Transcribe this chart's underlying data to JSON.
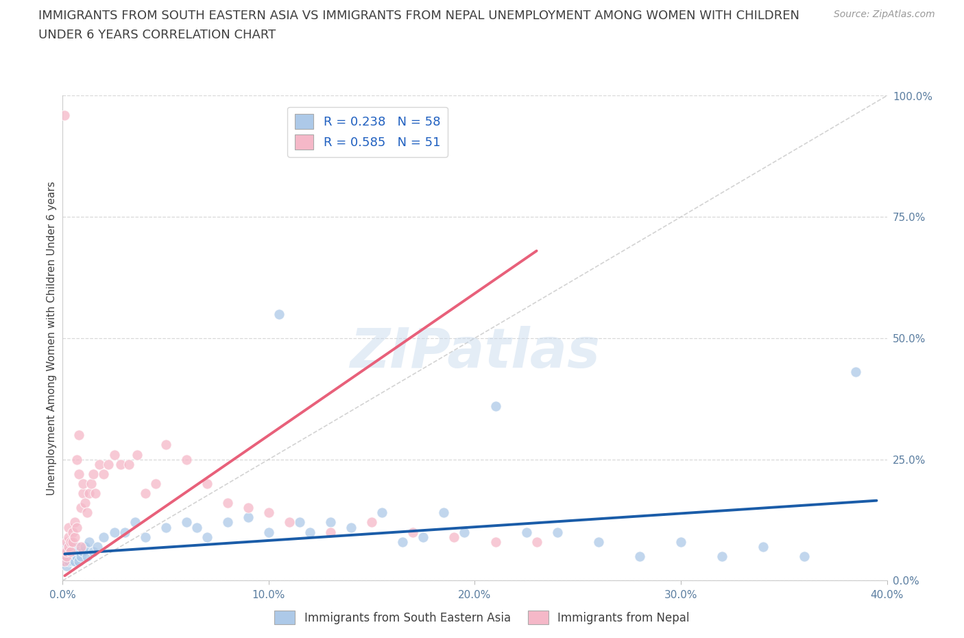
{
  "title_line1": "IMMIGRANTS FROM SOUTH EASTERN ASIA VS IMMIGRANTS FROM NEPAL UNEMPLOYMENT AMONG WOMEN WITH CHILDREN",
  "title_line2": "UNDER 6 YEARS CORRELATION CHART",
  "source_text": "Source: ZipAtlas.com",
  "ylabel": "Unemployment Among Women with Children Under 6 years",
  "watermark": "ZIPatlas",
  "R_sea": 0.238,
  "N_sea": 58,
  "R_nepal": 0.585,
  "N_nepal": 51,
  "color_sea": "#adc9e8",
  "color_sea_line": "#1a5ca8",
  "color_nepal": "#f5b8c8",
  "color_nepal_line": "#e8607a",
  "color_diag": "#c8c8c8",
  "xlim": [
    0.0,
    0.4
  ],
  "ylim": [
    0.0,
    1.0
  ],
  "xticks": [
    0.0,
    0.1,
    0.2,
    0.3,
    0.4
  ],
  "yticks": [
    0.0,
    0.25,
    0.5,
    0.75,
    1.0
  ],
  "xtick_labels": [
    "0.0%",
    "10.0%",
    "20.0%",
    "30.0%",
    "40.0%"
  ],
  "ytick_labels": [
    "0.0%",
    "25.0%",
    "50.0%",
    "75.0%",
    "100.0%"
  ],
  "sea_x": [
    0.001,
    0.001,
    0.002,
    0.002,
    0.002,
    0.003,
    0.003,
    0.003,
    0.004,
    0.004,
    0.005,
    0.005,
    0.005,
    0.006,
    0.006,
    0.007,
    0.007,
    0.008,
    0.008,
    0.009,
    0.01,
    0.011,
    0.012,
    0.013,
    0.015,
    0.017,
    0.02,
    0.025,
    0.03,
    0.035,
    0.04,
    0.05,
    0.06,
    0.065,
    0.07,
    0.08,
    0.09,
    0.1,
    0.105,
    0.115,
    0.12,
    0.13,
    0.14,
    0.155,
    0.165,
    0.175,
    0.185,
    0.195,
    0.21,
    0.225,
    0.24,
    0.26,
    0.28,
    0.3,
    0.32,
    0.34,
    0.36,
    0.385
  ],
  "sea_y": [
    0.04,
    0.06,
    0.05,
    0.07,
    0.03,
    0.05,
    0.04,
    0.06,
    0.05,
    0.07,
    0.04,
    0.06,
    0.05,
    0.04,
    0.06,
    0.05,
    0.07,
    0.06,
    0.04,
    0.05,
    0.06,
    0.07,
    0.05,
    0.08,
    0.06,
    0.07,
    0.09,
    0.1,
    0.1,
    0.12,
    0.09,
    0.11,
    0.12,
    0.11,
    0.09,
    0.12,
    0.13,
    0.1,
    0.55,
    0.12,
    0.1,
    0.12,
    0.11,
    0.14,
    0.08,
    0.09,
    0.14,
    0.1,
    0.36,
    0.1,
    0.1,
    0.08,
    0.05,
    0.08,
    0.05,
    0.07,
    0.05,
    0.43
  ],
  "nepal_x": [
    0.001,
    0.001,
    0.002,
    0.002,
    0.002,
    0.003,
    0.003,
    0.003,
    0.004,
    0.004,
    0.005,
    0.005,
    0.006,
    0.006,
    0.007,
    0.007,
    0.008,
    0.008,
    0.009,
    0.009,
    0.01,
    0.01,
    0.011,
    0.012,
    0.013,
    0.014,
    0.015,
    0.016,
    0.018,
    0.02,
    0.022,
    0.025,
    0.028,
    0.032,
    0.036,
    0.04,
    0.045,
    0.05,
    0.06,
    0.07,
    0.08,
    0.09,
    0.1,
    0.11,
    0.13,
    0.15,
    0.17,
    0.19,
    0.21,
    0.23,
    0.001
  ],
  "nepal_y": [
    0.04,
    0.06,
    0.05,
    0.08,
    0.06,
    0.07,
    0.09,
    0.11,
    0.08,
    0.06,
    0.1,
    0.08,
    0.12,
    0.09,
    0.11,
    0.25,
    0.3,
    0.22,
    0.07,
    0.15,
    0.18,
    0.2,
    0.16,
    0.14,
    0.18,
    0.2,
    0.22,
    0.18,
    0.24,
    0.22,
    0.24,
    0.26,
    0.24,
    0.24,
    0.26,
    0.18,
    0.2,
    0.28,
    0.25,
    0.2,
    0.16,
    0.15,
    0.14,
    0.12,
    0.1,
    0.12,
    0.1,
    0.09,
    0.08,
    0.08,
    0.96
  ],
  "sea_trendline_x": [
    0.001,
    0.395
  ],
  "sea_trendline_y": [
    0.055,
    0.165
  ],
  "nepal_trendline_x": [
    0.001,
    0.23
  ],
  "nepal_trendline_y": [
    0.01,
    0.68
  ],
  "background_color": "#ffffff",
  "grid_color": "#d8d8d8",
  "title_color": "#404040",
  "axis_color": "#5a7da0",
  "legend_text_color": "#2060c0"
}
